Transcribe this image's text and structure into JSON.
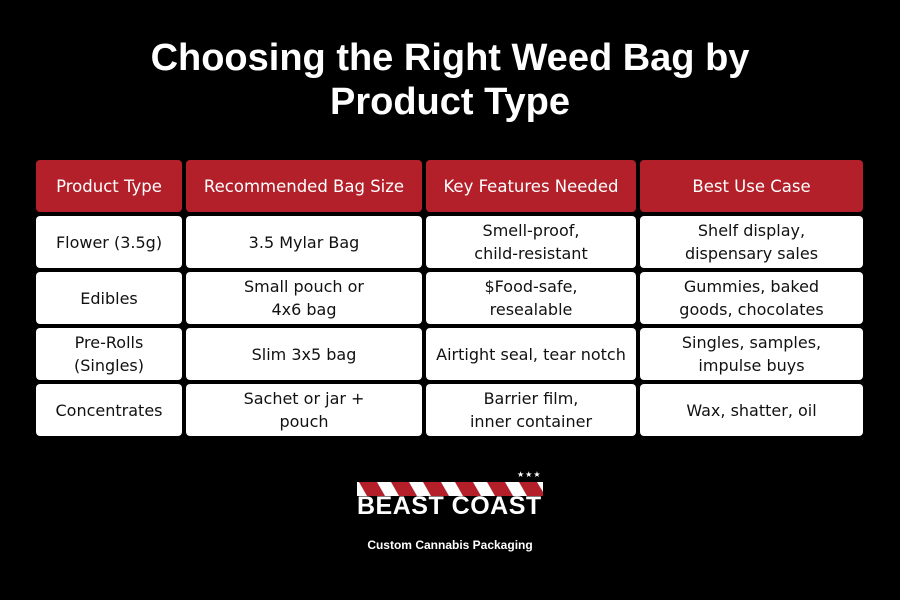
{
  "title": {
    "line1": "Choosing the Right Weed Bag by",
    "line2": "Product Type"
  },
  "table": {
    "headers": [
      "Product Type",
      "Recommended Bag Size",
      "Key Features Needed",
      "Best Use Case"
    ],
    "rows": [
      [
        "Flower (3.5g)",
        "3.5 Mylar Bag",
        "Smell-proof,\nchild-resistant",
        "Shelf display,\ndispensary sales"
      ],
      [
        "Edibles",
        "Small pouch or\n4x6 bag",
        "$Food-safe,\nresealable",
        "Gummies, baked\ngoods, chocolates"
      ],
      [
        "Pre-Rolls\n(Singles)",
        "Slim 3x5 bag",
        "Airtight seal, tear notch",
        "Singles, samples,\nimpulse buys"
      ],
      [
        "Concentrates",
        "Sachet or jar +\npouch",
        "Barrier film,\ninner container",
        "Wax, shatter, oil"
      ]
    ]
  },
  "logo": {
    "stars": "★★★",
    "name": "BEAST COAST",
    "tagline": "Custom Cannabis Packaging"
  },
  "colors": {
    "background": "#000000",
    "header": "#b3202a",
    "cell": "#ffffff"
  }
}
